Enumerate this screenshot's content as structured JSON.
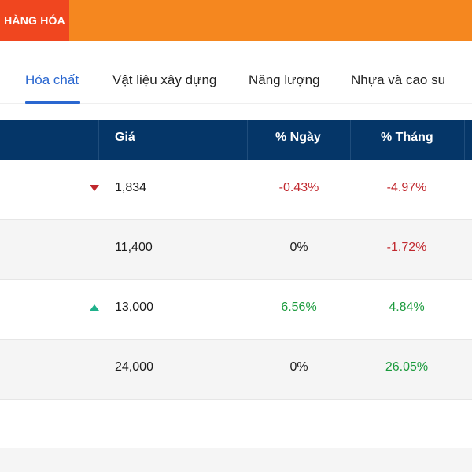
{
  "header": {
    "title": "HÀNG HÓA"
  },
  "tabs": [
    {
      "label": "Hóa chất",
      "active": true
    },
    {
      "label": "Vật liệu xây dựng",
      "active": false
    },
    {
      "label": "Năng lượng",
      "active": false
    },
    {
      "label": "Nhựa và cao su",
      "active": false
    }
  ],
  "table": {
    "columns": {
      "price": "Giá",
      "day": "% Ngày",
      "month": "% Tháng"
    },
    "rows": [
      {
        "trend": "down",
        "price": "1,834",
        "day": "-0.43%",
        "month": "-4.97%"
      },
      {
        "trend": "none",
        "price": "11,400",
        "day": "0%",
        "month": "-1.72%"
      },
      {
        "trend": "up",
        "price": "13,000",
        "day": "6.56%",
        "month": "4.84%"
      },
      {
        "trend": "none",
        "price": "24,000",
        "day": "0%",
        "month": "26.05%"
      }
    ]
  },
  "colors": {
    "header_orange": "#f5871f",
    "header_label_red": "#f0461f",
    "table_header_navy": "#053668",
    "active_tab_blue": "#2a67d0",
    "negative_red": "#c0272d",
    "positive_green": "#1a9a3c",
    "up_arrow_teal": "#1fb18b"
  }
}
